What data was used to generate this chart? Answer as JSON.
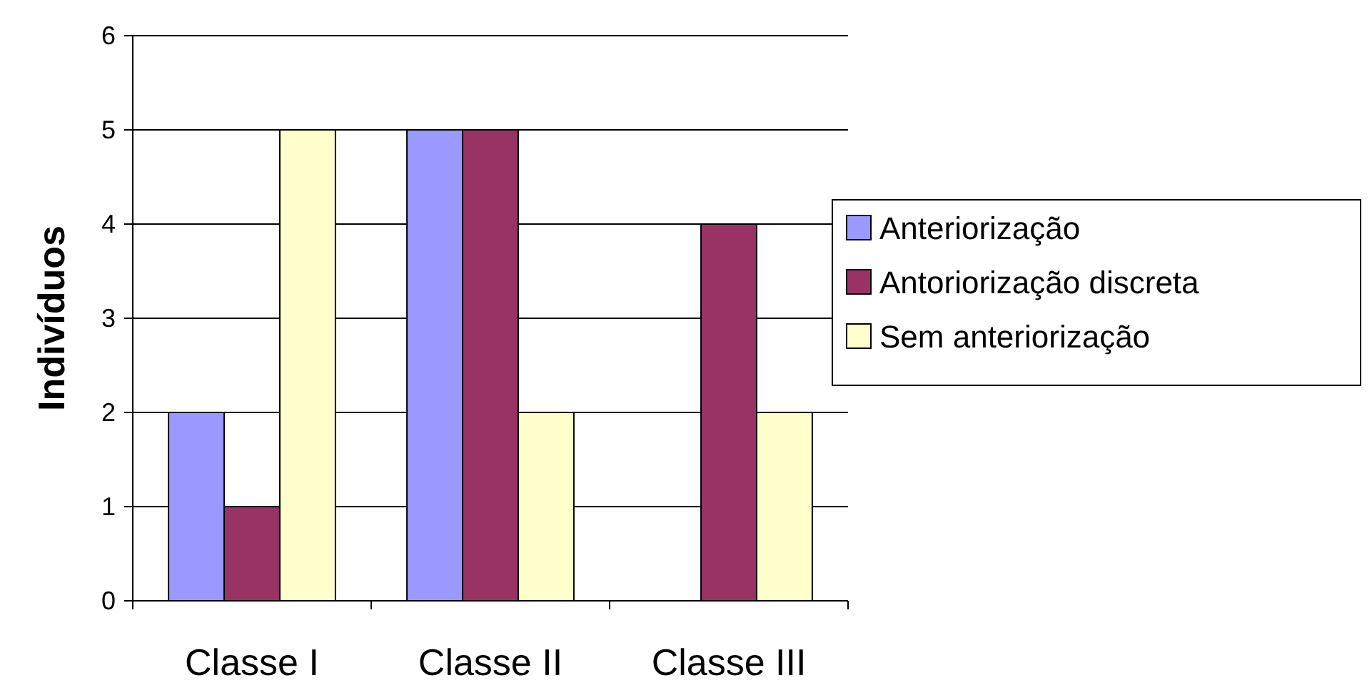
{
  "chart_data": {
    "type": "bar",
    "ylabel": "Indivíduos",
    "categories": [
      "Classe I",
      "Classe II",
      "Classe III"
    ],
    "series": [
      {
        "name": "Anteriorização",
        "color": "#9999ff",
        "values": [
          2,
          5,
          0
        ]
      },
      {
        "name": "Antoriorização discreta",
        "color": "#993366",
        "values": [
          1,
          5,
          4
        ]
      },
      {
        "name": "Sem anteriorização",
        "color": "#ffffcc",
        "values": [
          5,
          2,
          2
        ]
      }
    ],
    "ylim": [
      0,
      6
    ],
    "yticks": [
      0,
      1,
      2,
      3,
      4,
      5,
      6
    ],
    "grid": "y",
    "legend": "right"
  }
}
